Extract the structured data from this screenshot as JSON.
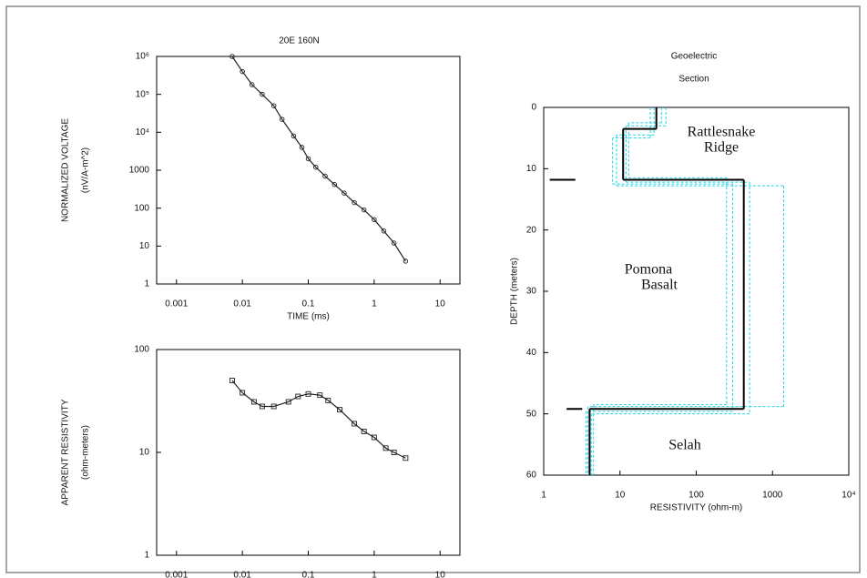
{
  "chart_data": [
    {
      "type": "line",
      "title": "20E 160N",
      "xlabel": "TIME (ms)",
      "ylabel": [
        "NORMALIZED VOLTAGE",
        "(nV/A-m^2)"
      ],
      "xlog": true,
      "ylog": true,
      "xlim": [
        0.0005,
        20
      ],
      "ylim": [
        1,
        1000000
      ],
      "xticks": [
        0.001,
        0.01,
        0.1,
        1,
        10
      ],
      "yticks": [
        1,
        10,
        100,
        1000,
        {
          "value": 10000,
          "label": "10⁴"
        },
        {
          "value": 100000,
          "label": "10⁵"
        },
        {
          "value": 1000000,
          "label": "10⁶"
        }
      ],
      "marker": "circle",
      "color": "#222222",
      "x": [
        0.007,
        0.01,
        0.014,
        0.02,
        0.03,
        0.04,
        0.06,
        0.08,
        0.1,
        0.13,
        0.18,
        0.25,
        0.35,
        0.5,
        0.7,
        1,
        1.4,
        2,
        3
      ],
      "values": [
        1000000,
        400000,
        180000,
        100000,
        50000,
        22000,
        8000,
        4000,
        2000,
        1200,
        700,
        420,
        250,
        140,
        90,
        50,
        25,
        12,
        4
      ]
    },
    {
      "type": "line",
      "xlabel": "TIME (ms)",
      "ylabel": [
        "APPARENT RESISTIVITY",
        "(ohm-meters)"
      ],
      "xlog": true,
      "ylog": true,
      "xlim": [
        0.0005,
        20
      ],
      "ylim": [
        1,
        100
      ],
      "xticks": [
        0.001,
        0.01,
        0.1,
        1,
        10
      ],
      "yticks": [
        1,
        10,
        100
      ],
      "marker": "square",
      "color": "#222222",
      "x": [
        0.007,
        0.01,
        0.015,
        0.02,
        0.03,
        0.05,
        0.07,
        0.1,
        0.15,
        0.2,
        0.3,
        0.5,
        0.7,
        1,
        1.5,
        2,
        3
      ],
      "values": [
        50,
        38,
        31,
        28,
        28,
        31,
        35,
        37,
        36,
        32,
        26,
        19,
        16,
        14,
        11,
        10,
        8.8
      ]
    },
    {
      "type": "step",
      "title_lines": [
        "Geoelectric",
        "Section"
      ],
      "xlabel": "RESISTIVITY (ohm-m)",
      "ylabel": "DEPTH (meters)",
      "xlog": true,
      "y_inverted": true,
      "xlim": [
        1,
        10000
      ],
      "ylim": [
        0,
        60
      ],
      "xticks": [
        1,
        10,
        100,
        1000,
        {
          "value": 10000,
          "label": "10⁴"
        }
      ],
      "yticks": [
        0,
        10,
        20,
        30,
        40,
        50,
        60
      ],
      "annotations": [
        [
          "Rattlesnake",
          "Ridge"
        ],
        [
          "Pomona",
          "Basalt"
        ],
        [
          "Selah"
        ]
      ],
      "model": {
        "color": "#000000",
        "resistivities": [
          30,
          11,
          420,
          4
        ],
        "depths": [
          3.5,
          11.8,
          49.2
        ]
      },
      "equivalent_models": {
        "color": "#22d3e6",
        "models": [
          {
            "resistivities": [
              35,
              13,
              250,
              4.5
            ],
            "depths": [
              2.5,
              11.5,
              48.5
            ]
          },
          {
            "resistivities": [
              28,
              9,
              1400,
              3.8
            ],
            "depths": [
              4.5,
              12.8,
              48.8
            ]
          },
          {
            "resistivities": [
              40,
              12,
              500,
              4.2
            ],
            "depths": [
              3,
              12.2,
              50
            ]
          },
          {
            "resistivities": [
              25,
              8,
              300,
              3.6
            ],
            "depths": [
              5,
              12.5,
              49.6
            ]
          }
        ]
      },
      "depth_marks": [
        {
          "depth": 11.8,
          "from": 1.2,
          "to": 2.6
        },
        {
          "depth": 49.2,
          "from": 2,
          "to": 3.2
        }
      ]
    }
  ]
}
